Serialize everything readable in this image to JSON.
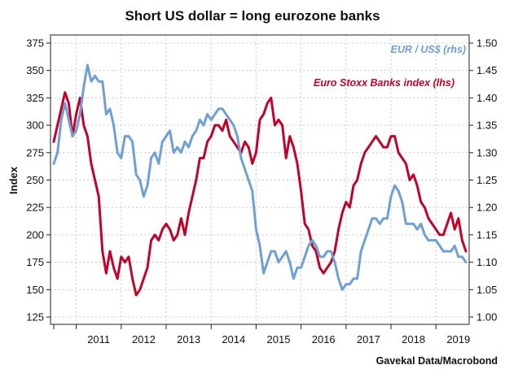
{
  "chart_data": {
    "type": "line",
    "title": "Short US dollar = long eurozone banks",
    "ylabel_left": "Index",
    "ylabel_right": "",
    "source": "Gavekal Data/Macrobond",
    "x_tick_labels": [
      "2011",
      "2012",
      "2013",
      "2014",
      "2015",
      "2016",
      "2017",
      "2018",
      "2019"
    ],
    "x_range": [
      "2010-07",
      "2019-09"
    ],
    "y_left": {
      "min": 125,
      "max": 375,
      "ticks": [
        125,
        150,
        175,
        200,
        225,
        250,
        275,
        300,
        325,
        350,
        375
      ]
    },
    "y_right": {
      "min": 1.0,
      "max": 1.5,
      "ticks": [
        "1.00",
        "1.05",
        "1.10",
        "1.15",
        "1.20",
        "1.25",
        "1.30",
        "1.35",
        "1.40",
        "1.45",
        "1.50"
      ]
    },
    "grid": true,
    "legend_placement": "top-right",
    "series": [
      {
        "name": "EUR / US$ (rhs)",
        "axis": "right",
        "color": "#6f9fd3",
        "x": [
          "2010-07",
          "2010-08",
          "2010-09",
          "2010-10",
          "2010-11",
          "2010-12",
          "2011-01",
          "2011-02",
          "2011-03",
          "2011-04",
          "2011-05",
          "2011-06",
          "2011-07",
          "2011-08",
          "2011-09",
          "2011-10",
          "2011-11",
          "2011-12",
          "2012-01",
          "2012-02",
          "2012-03",
          "2012-04",
          "2012-05",
          "2012-06",
          "2012-07",
          "2012-08",
          "2012-09",
          "2012-10",
          "2012-11",
          "2012-12",
          "2013-01",
          "2013-02",
          "2013-03",
          "2013-04",
          "2013-05",
          "2013-06",
          "2013-07",
          "2013-08",
          "2013-09",
          "2013-10",
          "2013-11",
          "2013-12",
          "2014-01",
          "2014-02",
          "2014-03",
          "2014-04",
          "2014-05",
          "2014-06",
          "2014-07",
          "2014-08",
          "2014-09",
          "2014-10",
          "2014-11",
          "2014-12",
          "2015-01",
          "2015-02",
          "2015-03",
          "2015-04",
          "2015-05",
          "2015-06",
          "2015-07",
          "2015-08",
          "2015-09",
          "2015-10",
          "2015-11",
          "2015-12",
          "2016-01",
          "2016-02",
          "2016-03",
          "2016-04",
          "2016-05",
          "2016-06",
          "2016-07",
          "2016-08",
          "2016-09",
          "2016-10",
          "2016-11",
          "2016-12",
          "2017-01",
          "2017-02",
          "2017-03",
          "2017-04",
          "2017-05",
          "2017-06",
          "2017-07",
          "2017-08",
          "2017-09",
          "2017-10",
          "2017-11",
          "2017-12",
          "2018-01",
          "2018-02",
          "2018-03",
          "2018-04",
          "2018-05",
          "2018-06",
          "2018-07",
          "2018-08",
          "2018-09",
          "2018-10",
          "2018-11",
          "2018-12",
          "2019-01",
          "2019-02",
          "2019-03",
          "2019-04",
          "2019-05",
          "2019-06",
          "2019-07",
          "2019-08",
          "2019-09"
        ],
        "values": [
          1.28,
          1.3,
          1.36,
          1.39,
          1.36,
          1.33,
          1.34,
          1.37,
          1.42,
          1.46,
          1.43,
          1.44,
          1.43,
          1.43,
          1.37,
          1.38,
          1.35,
          1.3,
          1.29,
          1.33,
          1.33,
          1.32,
          1.26,
          1.25,
          1.22,
          1.24,
          1.29,
          1.3,
          1.28,
          1.32,
          1.33,
          1.34,
          1.3,
          1.31,
          1.3,
          1.32,
          1.31,
          1.33,
          1.34,
          1.36,
          1.35,
          1.37,
          1.36,
          1.37,
          1.38,
          1.38,
          1.37,
          1.36,
          1.35,
          1.33,
          1.29,
          1.27,
          1.25,
          1.23,
          1.16,
          1.13,
          1.08,
          1.1,
          1.12,
          1.12,
          1.1,
          1.11,
          1.12,
          1.1,
          1.07,
          1.09,
          1.09,
          1.11,
          1.13,
          1.14,
          1.13,
          1.11,
          1.11,
          1.12,
          1.12,
          1.1,
          1.07,
          1.05,
          1.06,
          1.06,
          1.07,
          1.07,
          1.12,
          1.14,
          1.16,
          1.18,
          1.18,
          1.17,
          1.18,
          1.18,
          1.22,
          1.24,
          1.23,
          1.21,
          1.17,
          1.17,
          1.17,
          1.16,
          1.17,
          1.15,
          1.14,
          1.14,
          1.14,
          1.13,
          1.12,
          1.12,
          1.12,
          1.13,
          1.11,
          1.11,
          1.1
        ]
      },
      {
        "name": "Euro Stoxx Banks index (lhs)",
        "axis": "left",
        "color": "#c0032a",
        "x": [
          "2010-07",
          "2010-08",
          "2010-09",
          "2010-10",
          "2010-11",
          "2010-12",
          "2011-01",
          "2011-02",
          "2011-03",
          "2011-04",
          "2011-05",
          "2011-06",
          "2011-07",
          "2011-08",
          "2011-09",
          "2011-10",
          "2011-11",
          "2011-12",
          "2012-01",
          "2012-02",
          "2012-03",
          "2012-04",
          "2012-05",
          "2012-06",
          "2012-07",
          "2012-08",
          "2012-09",
          "2012-10",
          "2012-11",
          "2012-12",
          "2013-01",
          "2013-02",
          "2013-03",
          "2013-04",
          "2013-05",
          "2013-06",
          "2013-07",
          "2013-08",
          "2013-09",
          "2013-10",
          "2013-11",
          "2013-12",
          "2014-01",
          "2014-02",
          "2014-03",
          "2014-04",
          "2014-05",
          "2014-06",
          "2014-07",
          "2014-08",
          "2014-09",
          "2014-10",
          "2014-11",
          "2014-12",
          "2015-01",
          "2015-02",
          "2015-03",
          "2015-04",
          "2015-05",
          "2015-06",
          "2015-07",
          "2015-08",
          "2015-09",
          "2015-10",
          "2015-11",
          "2015-12",
          "2016-01",
          "2016-02",
          "2016-03",
          "2016-04",
          "2016-05",
          "2016-06",
          "2016-07",
          "2016-08",
          "2016-09",
          "2016-10",
          "2016-11",
          "2016-12",
          "2017-01",
          "2017-02",
          "2017-03",
          "2017-04",
          "2017-05",
          "2017-06",
          "2017-07",
          "2017-08",
          "2017-09",
          "2017-10",
          "2017-11",
          "2017-12",
          "2018-01",
          "2018-02",
          "2018-03",
          "2018-04",
          "2018-05",
          "2018-06",
          "2018-07",
          "2018-08",
          "2018-09",
          "2018-10",
          "2018-11",
          "2018-12",
          "2019-01",
          "2019-02",
          "2019-03",
          "2019-04",
          "2019-05",
          "2019-06",
          "2019-07",
          "2019-08",
          "2019-09"
        ],
        "values": [
          285,
          300,
          315,
          330,
          320,
          290,
          310,
          325,
          300,
          290,
          265,
          250,
          235,
          185,
          165,
          185,
          170,
          160,
          180,
          175,
          180,
          160,
          145,
          150,
          160,
          170,
          195,
          200,
          195,
          205,
          210,
          205,
          195,
          200,
          215,
          200,
          220,
          235,
          250,
          270,
          270,
          285,
          290,
          300,
          300,
          295,
          305,
          290,
          285,
          280,
          275,
          285,
          280,
          265,
          275,
          305,
          310,
          320,
          325,
          300,
          305,
          300,
          270,
          290,
          280,
          265,
          240,
          210,
          205,
          190,
          185,
          170,
          165,
          170,
          175,
          185,
          205,
          220,
          230,
          225,
          245,
          250,
          265,
          275,
          280,
          285,
          290,
          285,
          280,
          280,
          290,
          290,
          275,
          270,
          265,
          250,
          255,
          245,
          230,
          225,
          215,
          210,
          205,
          200,
          200,
          210,
          220,
          205,
          215,
          195,
          185
        ]
      }
    ]
  }
}
